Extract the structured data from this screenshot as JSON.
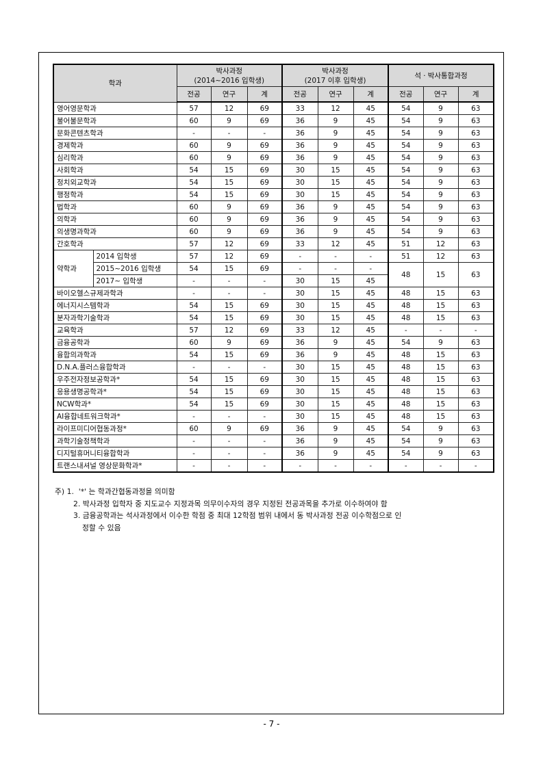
{
  "table": {
    "header": {
      "dept": "학과",
      "groups": [
        {
          "title": "박사과정",
          "subtitle": "(2014~2016 입학생)"
        },
        {
          "title": "박사과정",
          "subtitle": "(2017 이후 입학생)"
        },
        {
          "title": "석ㆍ박사통합과정",
          "subtitle": ""
        }
      ],
      "sub_cols": [
        "전공",
        "연구",
        "계"
      ]
    },
    "rows_before": [
      {
        "dept": "영어영문학과",
        "v": [
          "57",
          "12",
          "69",
          "33",
          "12",
          "45",
          "54",
          "9",
          "63"
        ]
      },
      {
        "dept": "불어불문학과",
        "v": [
          "60",
          "9",
          "69",
          "36",
          "9",
          "45",
          "54",
          "9",
          "63"
        ]
      },
      {
        "dept": "문화콘텐츠학과",
        "v": [
          "-",
          "-",
          "-",
          "36",
          "9",
          "45",
          "54",
          "9",
          "63"
        ]
      },
      {
        "dept": "경제학과",
        "v": [
          "60",
          "9",
          "69",
          "36",
          "9",
          "45",
          "54",
          "9",
          "63"
        ]
      },
      {
        "dept": "심리학과",
        "v": [
          "60",
          "9",
          "69",
          "36",
          "9",
          "45",
          "54",
          "9",
          "63"
        ]
      },
      {
        "dept": "사회학과",
        "v": [
          "54",
          "15",
          "69",
          "30",
          "15",
          "45",
          "54",
          "9",
          "63"
        ]
      },
      {
        "dept": "정치외교학과",
        "v": [
          "54",
          "15",
          "69",
          "30",
          "15",
          "45",
          "54",
          "9",
          "63"
        ]
      },
      {
        "dept": "행정학과",
        "v": [
          "54",
          "15",
          "69",
          "30",
          "15",
          "45",
          "54",
          "9",
          "63"
        ]
      },
      {
        "dept": "법학과",
        "v": [
          "60",
          "9",
          "69",
          "36",
          "9",
          "45",
          "54",
          "9",
          "63"
        ]
      },
      {
        "dept": "의학과",
        "v": [
          "60",
          "9",
          "69",
          "36",
          "9",
          "45",
          "54",
          "9",
          "63"
        ]
      },
      {
        "dept": "의생명과학과",
        "v": [
          "60",
          "9",
          "69",
          "36",
          "9",
          "45",
          "54",
          "9",
          "63"
        ]
      },
      {
        "dept": "간호학과",
        "v": [
          "57",
          "12",
          "69",
          "33",
          "12",
          "45",
          "51",
          "12",
          "63"
        ]
      }
    ],
    "pharmacy": {
      "dept": "약학과",
      "rows": [
        {
          "sub": "2014 입학생",
          "v": [
            "57",
            "12",
            "69",
            "-",
            "-",
            "-",
            "51",
            "12",
            "63"
          ]
        },
        {
          "sub": "2015~2016 입학생",
          "v": [
            "54",
            "15",
            "69",
            "-",
            "-",
            "-"
          ]
        },
        {
          "sub": "2017~ 입학생",
          "v": [
            "-",
            "-",
            "-",
            "30",
            "15",
            "45"
          ]
        }
      ],
      "merged_integrated": [
        "48",
        "15",
        "63"
      ]
    },
    "rows_after": [
      {
        "dept": "바이오헬스규제과학과",
        "v": [
          "-",
          "-",
          "-",
          "30",
          "15",
          "45",
          "48",
          "15",
          "63"
        ]
      },
      {
        "dept": "에너지시스템학과",
        "v": [
          "54",
          "15",
          "69",
          "30",
          "15",
          "45",
          "48",
          "15",
          "63"
        ]
      },
      {
        "dept": "분자과학기술학과",
        "v": [
          "54",
          "15",
          "69",
          "30",
          "15",
          "45",
          "48",
          "15",
          "63"
        ]
      },
      {
        "dept": "교육학과",
        "v": [
          "57",
          "12",
          "69",
          "33",
          "12",
          "45",
          "-",
          "-",
          "-"
        ]
      },
      {
        "dept": "금융공학과",
        "v": [
          "60",
          "9",
          "69",
          "36",
          "9",
          "45",
          "54",
          "9",
          "63"
        ]
      },
      {
        "dept": "융합의과학과",
        "v": [
          "54",
          "15",
          "69",
          "36",
          "9",
          "45",
          "48",
          "15",
          "63"
        ]
      },
      {
        "dept": "D.N.A.플러스융합학과",
        "v": [
          "-",
          "-",
          "-",
          "30",
          "15",
          "45",
          "48",
          "15",
          "63"
        ]
      },
      {
        "dept": "우주전자정보공학과*",
        "v": [
          "54",
          "15",
          "69",
          "30",
          "15",
          "45",
          "48",
          "15",
          "63"
        ]
      },
      {
        "dept": "응용생명공학과*",
        "v": [
          "54",
          "15",
          "69",
          "30",
          "15",
          "45",
          "48",
          "15",
          "63"
        ]
      },
      {
        "dept": "NCW학과*",
        "v": [
          "54",
          "15",
          "69",
          "30",
          "15",
          "45",
          "48",
          "15",
          "63"
        ]
      },
      {
        "dept": "AI융합네트워크학과*",
        "v": [
          "-",
          "-",
          "-",
          "30",
          "15",
          "45",
          "48",
          "15",
          "63"
        ]
      },
      {
        "dept": "라이프미디어협동과정*",
        "v": [
          "60",
          "9",
          "69",
          "36",
          "9",
          "45",
          "54",
          "9",
          "63"
        ]
      },
      {
        "dept": "과학기술정책학과",
        "v": [
          "-",
          "-",
          "-",
          "36",
          "9",
          "45",
          "54",
          "9",
          "63"
        ]
      },
      {
        "dept": "디지털휴머니티융합학과",
        "v": [
          "-",
          "-",
          "-",
          "36",
          "9",
          "45",
          "54",
          "9",
          "63"
        ]
      },
      {
        "dept": "트랜스내셔널 영상문화학과*",
        "v": [
          "-",
          "-",
          "-",
          "-",
          "-",
          "-",
          "-",
          "-",
          "-"
        ]
      }
    ]
  },
  "notes": {
    "prefix": "주) 1.",
    "items": [
      "'*' 는 학과간협동과정을 의미함",
      "2. 박사과정 입학자 중 지도교수 지정과목 의무이수자의 경우 지정된 전공과목을 추가로 이수하여야 함",
      "3. 금융공학과는 석사과정에서 이수한 학점 중 최대 12학점 범위 내에서 동 박사과정 전공 이수학점으로 인",
      "정할 수 있음"
    ]
  },
  "page_number": "- 7 -"
}
